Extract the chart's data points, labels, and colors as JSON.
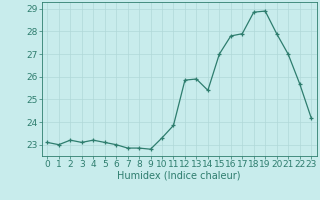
{
  "x": [
    0,
    1,
    2,
    3,
    4,
    5,
    6,
    7,
    8,
    9,
    10,
    11,
    12,
    13,
    14,
    15,
    16,
    17,
    18,
    19,
    20,
    21,
    22,
    23
  ],
  "y": [
    23.1,
    23.0,
    23.2,
    23.1,
    23.2,
    23.1,
    23.0,
    22.85,
    22.85,
    22.8,
    23.3,
    23.85,
    25.85,
    25.9,
    25.4,
    27.0,
    27.8,
    27.9,
    28.85,
    28.9,
    27.9,
    27.0,
    25.7,
    24.2
  ],
  "line_color": "#2e7d6e",
  "marker": "+",
  "marker_size": 3,
  "bg_color": "#c8ecec",
  "grid_color": "#b0d8d8",
  "xlabel": "Humidex (Indice chaleur)",
  "xlabel_fontsize": 7,
  "tick_fontsize": 6.5,
  "ylim": [
    22.5,
    29.3
  ],
  "xlim": [
    -0.5,
    23.5
  ],
  "yticks": [
    23,
    24,
    25,
    26,
    27,
    28,
    29
  ],
  "xticks": [
    0,
    1,
    2,
    3,
    4,
    5,
    6,
    7,
    8,
    9,
    10,
    11,
    12,
    13,
    14,
    15,
    16,
    17,
    18,
    19,
    20,
    21,
    22,
    23
  ]
}
